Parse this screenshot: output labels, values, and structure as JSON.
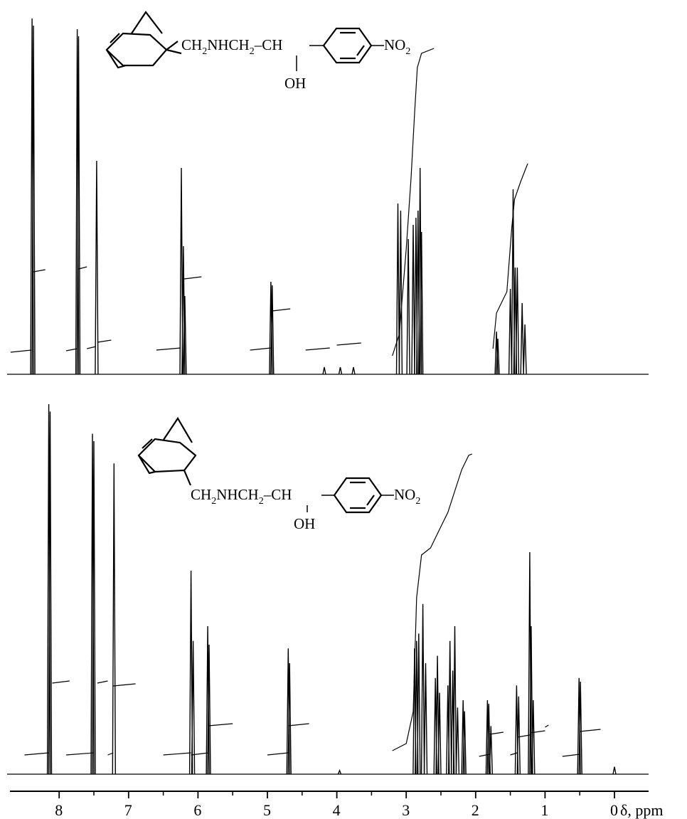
{
  "chart_data": [
    {
      "type": "line",
      "title": "",
      "xlabel": "δ, ppm",
      "xlim": [
        8.8,
        -0.35
      ],
      "x_reversed": true,
      "structure": {
        "ch2nh": "CH",
        "sub2": "2",
        "nhch": "NHCH",
        "dash": "–",
        "ch": "CH",
        "oh": "OH",
        "no": "NO",
        "o_sub": "2"
      },
      "peaks": [
        {
          "x": 8.39,
          "h": 1.0
        },
        {
          "x": 8.37,
          "h": 0.98
        },
        {
          "x": 7.74,
          "h": 0.97
        },
        {
          "x": 7.72,
          "h": 0.95
        },
        {
          "x": 7.46,
          "h": 0.6
        },
        {
          "x": 6.24,
          "h": 0.58
        },
        {
          "x": 6.21,
          "h": 0.36
        },
        {
          "x": 6.19,
          "h": 0.22
        },
        {
          "x": 4.95,
          "h": 0.26
        },
        {
          "x": 4.93,
          "h": 0.25
        },
        {
          "x": 4.18,
          "h": 0.02
        },
        {
          "x": 3.95,
          "h": 0.02
        },
        {
          "x": 3.76,
          "h": 0.02
        },
        {
          "x": 3.12,
          "h": 0.48
        },
        {
          "x": 3.08,
          "h": 0.46
        },
        {
          "x": 2.97,
          "h": 0.38
        },
        {
          "x": 2.9,
          "h": 0.42
        },
        {
          "x": 2.86,
          "h": 0.44
        },
        {
          "x": 2.83,
          "h": 0.46
        },
        {
          "x": 2.8,
          "h": 0.58
        },
        {
          "x": 2.78,
          "h": 0.4
        },
        {
          "x": 1.7,
          "h": 0.12
        },
        {
          "x": 1.68,
          "h": 0.1
        },
        {
          "x": 1.5,
          "h": 0.24
        },
        {
          "x": 1.46,
          "h": 0.52
        },
        {
          "x": 1.43,
          "h": 0.3
        },
        {
          "x": 1.4,
          "h": 0.3
        },
        {
          "x": 1.33,
          "h": 0.2
        },
        {
          "x": 1.29,
          "h": 0.14
        }
      ]
    },
    {
      "type": "line",
      "title": "",
      "xlabel": "δ, ppm",
      "xlim": [
        8.8,
        -0.35
      ],
      "x_reversed": true,
      "peaks": [
        {
          "x": 8.15,
          "h": 1.0
        },
        {
          "x": 8.13,
          "h": 0.98
        },
        {
          "x": 7.52,
          "h": 0.92
        },
        {
          "x": 7.5,
          "h": 0.9
        },
        {
          "x": 7.21,
          "h": 0.84
        },
        {
          "x": 6.1,
          "h": 0.55
        },
        {
          "x": 6.07,
          "h": 0.36
        },
        {
          "x": 5.86,
          "h": 0.4
        },
        {
          "x": 5.84,
          "h": 0.35
        },
        {
          "x": 4.7,
          "h": 0.34
        },
        {
          "x": 4.68,
          "h": 0.3
        },
        {
          "x": 3.96,
          "h": 0.01
        },
        {
          "x": 2.88,
          "h": 0.34
        },
        {
          "x": 2.85,
          "h": 0.36
        },
        {
          "x": 2.82,
          "h": 0.38
        },
        {
          "x": 2.76,
          "h": 0.46
        },
        {
          "x": 2.72,
          "h": 0.3
        },
        {
          "x": 2.58,
          "h": 0.26
        },
        {
          "x": 2.55,
          "h": 0.32
        },
        {
          "x": 2.52,
          "h": 0.22
        },
        {
          "x": 2.4,
          "h": 0.24
        },
        {
          "x": 2.37,
          "h": 0.36
        },
        {
          "x": 2.33,
          "h": 0.28
        },
        {
          "x": 2.3,
          "h": 0.4
        },
        {
          "x": 2.26,
          "h": 0.18
        },
        {
          "x": 2.18,
          "h": 0.2
        },
        {
          "x": 2.16,
          "h": 0.17
        },
        {
          "x": 1.83,
          "h": 0.2
        },
        {
          "x": 1.81,
          "h": 0.19
        },
        {
          "x": 1.78,
          "h": 0.13
        },
        {
          "x": 1.41,
          "h": 0.24
        },
        {
          "x": 1.38,
          "h": 0.21
        },
        {
          "x": 1.22,
          "h": 0.6
        },
        {
          "x": 1.2,
          "h": 0.4
        },
        {
          "x": 1.17,
          "h": 0.2
        },
        {
          "x": 0.51,
          "h": 0.26
        },
        {
          "x": 0.49,
          "h": 0.25
        },
        {
          "x": 0.0,
          "h": 0.02
        }
      ]
    }
  ],
  "axis": {
    "ticks": [
      8,
      7,
      6,
      5,
      4,
      3,
      2,
      1,
      0
    ],
    "tick_labels": [
      "8",
      "7",
      "6",
      "5",
      "4",
      "3",
      "2",
      "1",
      "0"
    ],
    "unit_label": "δ, ppm"
  }
}
